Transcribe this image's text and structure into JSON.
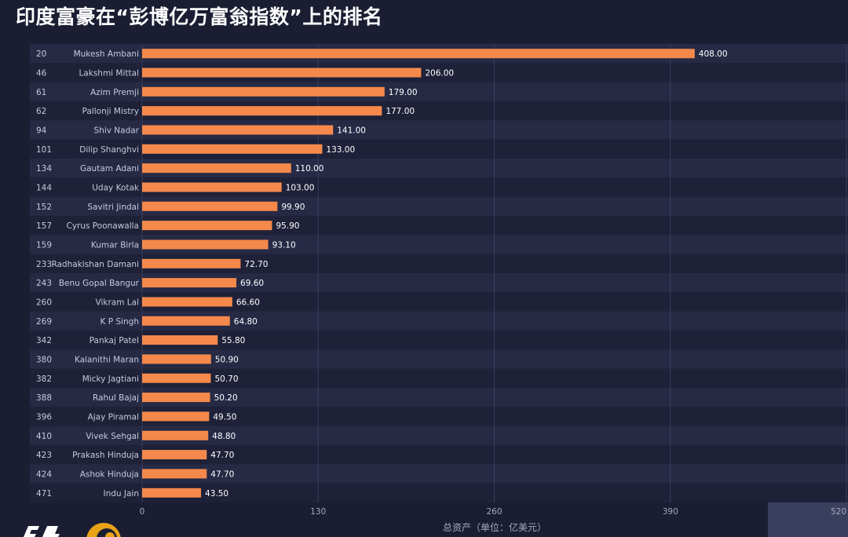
{
  "title": "印度富豪在“彭博亿万富翁指数”上的排名",
  "chart_data": {
    "type": "bar",
    "orientation": "horizontal",
    "title": "印度富豪在“彭博亿万富翁指数”上的排名",
    "xlabel": "总资产（单位：亿美元）",
    "ylabel": "",
    "xlim": [
      0,
      520
    ],
    "xticks": [
      "0",
      "130",
      "260",
      "390",
      "520"
    ],
    "xtick_values": [
      0,
      130,
      260,
      390,
      520
    ],
    "grid": true,
    "legend": "none",
    "bar_color": "#f5894b",
    "label_color": "#ffffff",
    "rows": [
      {
        "rank": "20",
        "name": "Mukesh Ambani",
        "value": 408.0,
        "label": "408.00"
      },
      {
        "rank": "46",
        "name": "Lakshmi Mittal",
        "value": 206.0,
        "label": "206.00"
      },
      {
        "rank": "61",
        "name": "Azim Premji",
        "value": 179.0,
        "label": "179.00"
      },
      {
        "rank": "62",
        "name": "Pallonji Mistry",
        "value": 177.0,
        "label": "177.00"
      },
      {
        "rank": "94",
        "name": "Shiv Nadar",
        "value": 141.0,
        "label": "141.00"
      },
      {
        "rank": "101",
        "name": "Dilip Shanghvi",
        "value": 133.0,
        "label": "133.00"
      },
      {
        "rank": "134",
        "name": "Gautam Adani",
        "value": 110.0,
        "label": "110.00"
      },
      {
        "rank": "144",
        "name": "Uday Kotak",
        "value": 103.0,
        "label": "103.00"
      },
      {
        "rank": "152",
        "name": "Savitri Jindal",
        "value": 99.9,
        "label": "99.90"
      },
      {
        "rank": "157",
        "name": "Cyrus Poonawalla",
        "value": 95.9,
        "label": "95.90"
      },
      {
        "rank": "159",
        "name": "Kumar Birla",
        "value": 93.1,
        "label": "93.10"
      },
      {
        "rank": "233",
        "name": "Radhakishan Damani",
        "value": 72.7,
        "label": "72.70"
      },
      {
        "rank": "243",
        "name": "Benu Gopal Bangur",
        "value": 69.6,
        "label": "69.60"
      },
      {
        "rank": "260",
        "name": "Vikram Lal",
        "value": 66.6,
        "label": "66.60"
      },
      {
        "rank": "269",
        "name": "K P Singh",
        "value": 64.8,
        "label": "64.80"
      },
      {
        "rank": "342",
        "name": "Pankaj Patel",
        "value": 55.8,
        "label": "55.80"
      },
      {
        "rank": "380",
        "name": "Kalanithi Maran",
        "value": 50.9,
        "label": "50.90"
      },
      {
        "rank": "382",
        "name": "Micky Jagtiani",
        "value": 50.7,
        "label": "50.70"
      },
      {
        "rank": "388",
        "name": "Rahul Bajaj",
        "value": 50.2,
        "label": "50.20"
      },
      {
        "rank": "396",
        "name": "Ajay Piramal",
        "value": 49.5,
        "label": "49.50"
      },
      {
        "rank": "410",
        "name": "Vivek Sehgal",
        "value": 48.8,
        "label": "48.80"
      },
      {
        "rank": "423",
        "name": "Prakash Hinduja",
        "value": 47.7,
        "label": "47.70"
      },
      {
        "rank": "424",
        "name": "Ashok Hinduja",
        "value": 47.7,
        "label": "47.70"
      },
      {
        "rank": "471",
        "name": "Indu Jain",
        "value": 43.5,
        "label": "43.50"
      }
    ]
  }
}
